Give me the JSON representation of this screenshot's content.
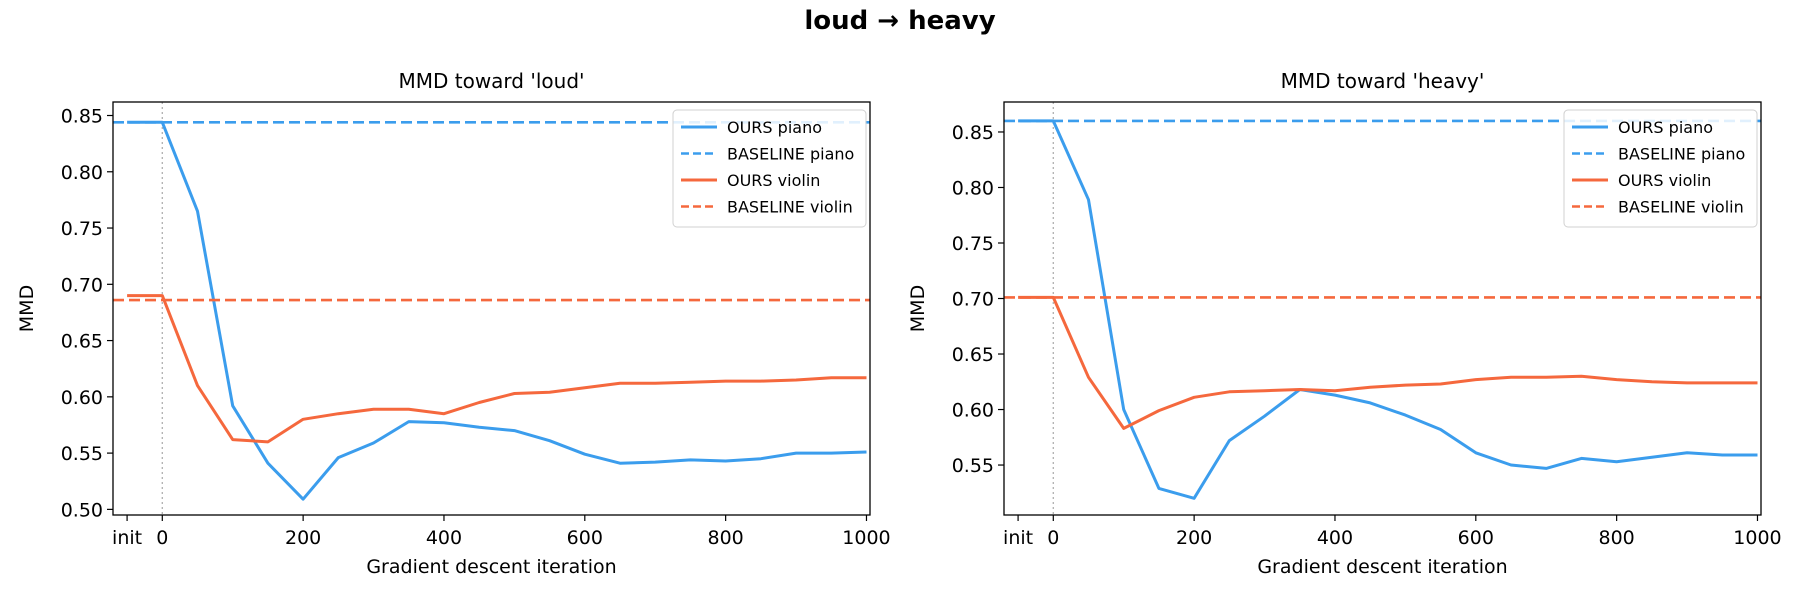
{
  "figure": {
    "title": "loud → heavy"
  },
  "colors": {
    "piano": "#3b9ded",
    "violin": "#f5683d"
  },
  "chart_data": [
    {
      "type": "line",
      "title": "MMD toward  'loud'",
      "xlabel": "Gradient descent iteration",
      "ylabel": "MMD",
      "x_ticks": [
        "init",
        "0",
        "200",
        "400",
        "600",
        "800",
        "1000"
      ],
      "y_ticks": [
        "0.50",
        "0.55",
        "0.60",
        "0.65",
        "0.70",
        "0.75",
        "0.80",
        "0.85"
      ],
      "xlim": [
        -70,
        1005
      ],
      "ylim": [
        0.495,
        0.862
      ],
      "x": [
        -50,
        0,
        50,
        100,
        150,
        200,
        250,
        300,
        350,
        400,
        450,
        500,
        550,
        600,
        650,
        700,
        750,
        800,
        850,
        900,
        950,
        1000
      ],
      "reference_line_x": 0,
      "legend_position": "top-right",
      "series": [
        {
          "name": "OURS piano",
          "style": "solid",
          "color": "#3b9ded",
          "values": [
            0.844,
            0.844,
            0.765,
            0.592,
            0.541,
            0.509,
            0.546,
            0.559,
            0.578,
            0.577,
            0.573,
            0.57,
            0.561,
            0.549,
            0.541,
            0.542,
            0.544,
            0.543,
            0.545,
            0.55,
            0.55,
            0.551
          ]
        },
        {
          "name": "BASELINE piano",
          "style": "dashed",
          "color": "#3b9ded",
          "constant": 0.844
        },
        {
          "name": "OURS violin",
          "style": "solid",
          "color": "#f5683d",
          "values": [
            0.69,
            0.69,
            0.61,
            0.562,
            0.56,
            0.58,
            0.585,
            0.589,
            0.589,
            0.585,
            0.595,
            0.603,
            0.604,
            0.608,
            0.612,
            0.612,
            0.613,
            0.614,
            0.614,
            0.615,
            0.617,
            0.617
          ]
        },
        {
          "name": "BASELINE violin",
          "style": "dashed",
          "color": "#f5683d",
          "constant": 0.686
        }
      ]
    },
    {
      "type": "line",
      "title": "MMD toward  'heavy'",
      "xlabel": "Gradient descent iteration",
      "ylabel": "MMD",
      "x_ticks": [
        "init",
        "0",
        "200",
        "400",
        "600",
        "800",
        "1000"
      ],
      "y_ticks": [
        "0.55",
        "0.60",
        "0.65",
        "0.70",
        "0.75",
        "0.80",
        "0.85"
      ],
      "xlim": [
        -70,
        1005
      ],
      "ylim": [
        0.505,
        0.877
      ],
      "x": [
        -50,
        0,
        50,
        100,
        150,
        200,
        250,
        300,
        350,
        400,
        450,
        500,
        550,
        600,
        650,
        700,
        750,
        800,
        850,
        900,
        950,
        1000
      ],
      "reference_line_x": 0,
      "legend_position": "top-right",
      "series": [
        {
          "name": "OURS piano",
          "style": "solid",
          "color": "#3b9ded",
          "values": [
            0.86,
            0.86,
            0.789,
            0.6,
            0.529,
            0.52,
            0.572,
            0.594,
            0.618,
            0.613,
            0.606,
            0.595,
            0.582,
            0.561,
            0.55,
            0.547,
            0.556,
            0.553,
            0.557,
            0.561,
            0.559,
            0.559
          ]
        },
        {
          "name": "BASELINE piano",
          "style": "dashed",
          "color": "#3b9ded",
          "constant": 0.86
        },
        {
          "name": "OURS violin",
          "style": "solid",
          "color": "#f5683d",
          "values": [
            0.701,
            0.701,
            0.629,
            0.583,
            0.599,
            0.611,
            0.616,
            0.617,
            0.618,
            0.617,
            0.62,
            0.622,
            0.623,
            0.627,
            0.629,
            0.629,
            0.63,
            0.627,
            0.625,
            0.624,
            0.624,
            0.624
          ]
        },
        {
          "name": "BASELINE violin",
          "style": "dashed",
          "color": "#f5683d",
          "constant": 0.701
        }
      ]
    }
  ]
}
